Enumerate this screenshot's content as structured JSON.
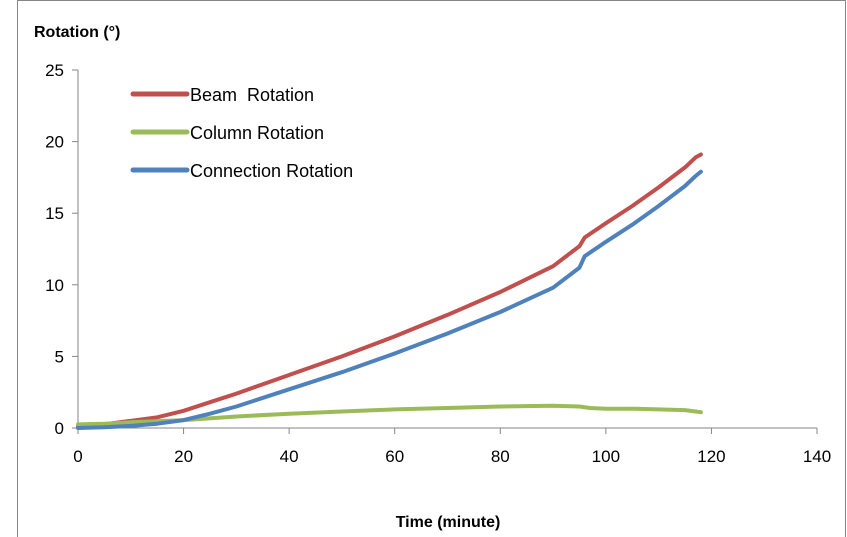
{
  "chart_data": {
    "type": "line",
    "title": "",
    "xlabel": "Time (minute)",
    "ylabel": "Rotation (°)",
    "xlim": [
      0,
      140
    ],
    "ylim": [
      0,
      25
    ],
    "xticks": [
      0,
      20,
      40,
      60,
      80,
      100,
      120,
      140
    ],
    "yticks": [
      0,
      5,
      10,
      15,
      20,
      25
    ],
    "grid": false,
    "legend_position": "top-left",
    "series": [
      {
        "name": "Beam  Rotation",
        "color": "#C0504D",
        "x": [
          0,
          5,
          10,
          15,
          20,
          25,
          30,
          40,
          50,
          60,
          70,
          80,
          90,
          95,
          96,
          100,
          105,
          110,
          115,
          117,
          118
        ],
        "y": [
          0.1,
          0.25,
          0.5,
          0.75,
          1.2,
          1.8,
          2.4,
          3.7,
          5.0,
          6.4,
          7.9,
          9.5,
          11.3,
          12.7,
          13.3,
          14.3,
          15.5,
          16.8,
          18.2,
          18.9,
          19.1
        ]
      },
      {
        "name": "Column Rotation",
        "color": "#9BBB59",
        "x": [
          0,
          5,
          10,
          20,
          30,
          40,
          50,
          60,
          70,
          80,
          90,
          95,
          97,
          100,
          105,
          110,
          115,
          117,
          118
        ],
        "y": [
          0.25,
          0.3,
          0.4,
          0.55,
          0.8,
          1.0,
          1.15,
          1.3,
          1.4,
          1.5,
          1.55,
          1.5,
          1.4,
          1.35,
          1.35,
          1.3,
          1.25,
          1.15,
          1.1
        ]
      },
      {
        "name": "Connection Rotation",
        "color": "#4F81BD",
        "x": [
          0,
          5,
          10,
          15,
          20,
          25,
          30,
          40,
          50,
          60,
          70,
          80,
          90,
          95,
          96,
          100,
          105,
          110,
          115,
          117,
          118
        ],
        "y": [
          0.0,
          0.05,
          0.15,
          0.3,
          0.55,
          1.0,
          1.5,
          2.7,
          3.9,
          5.2,
          6.6,
          8.1,
          9.8,
          11.2,
          12.0,
          13.0,
          14.2,
          15.5,
          16.9,
          17.6,
          17.9
        ]
      }
    ]
  }
}
